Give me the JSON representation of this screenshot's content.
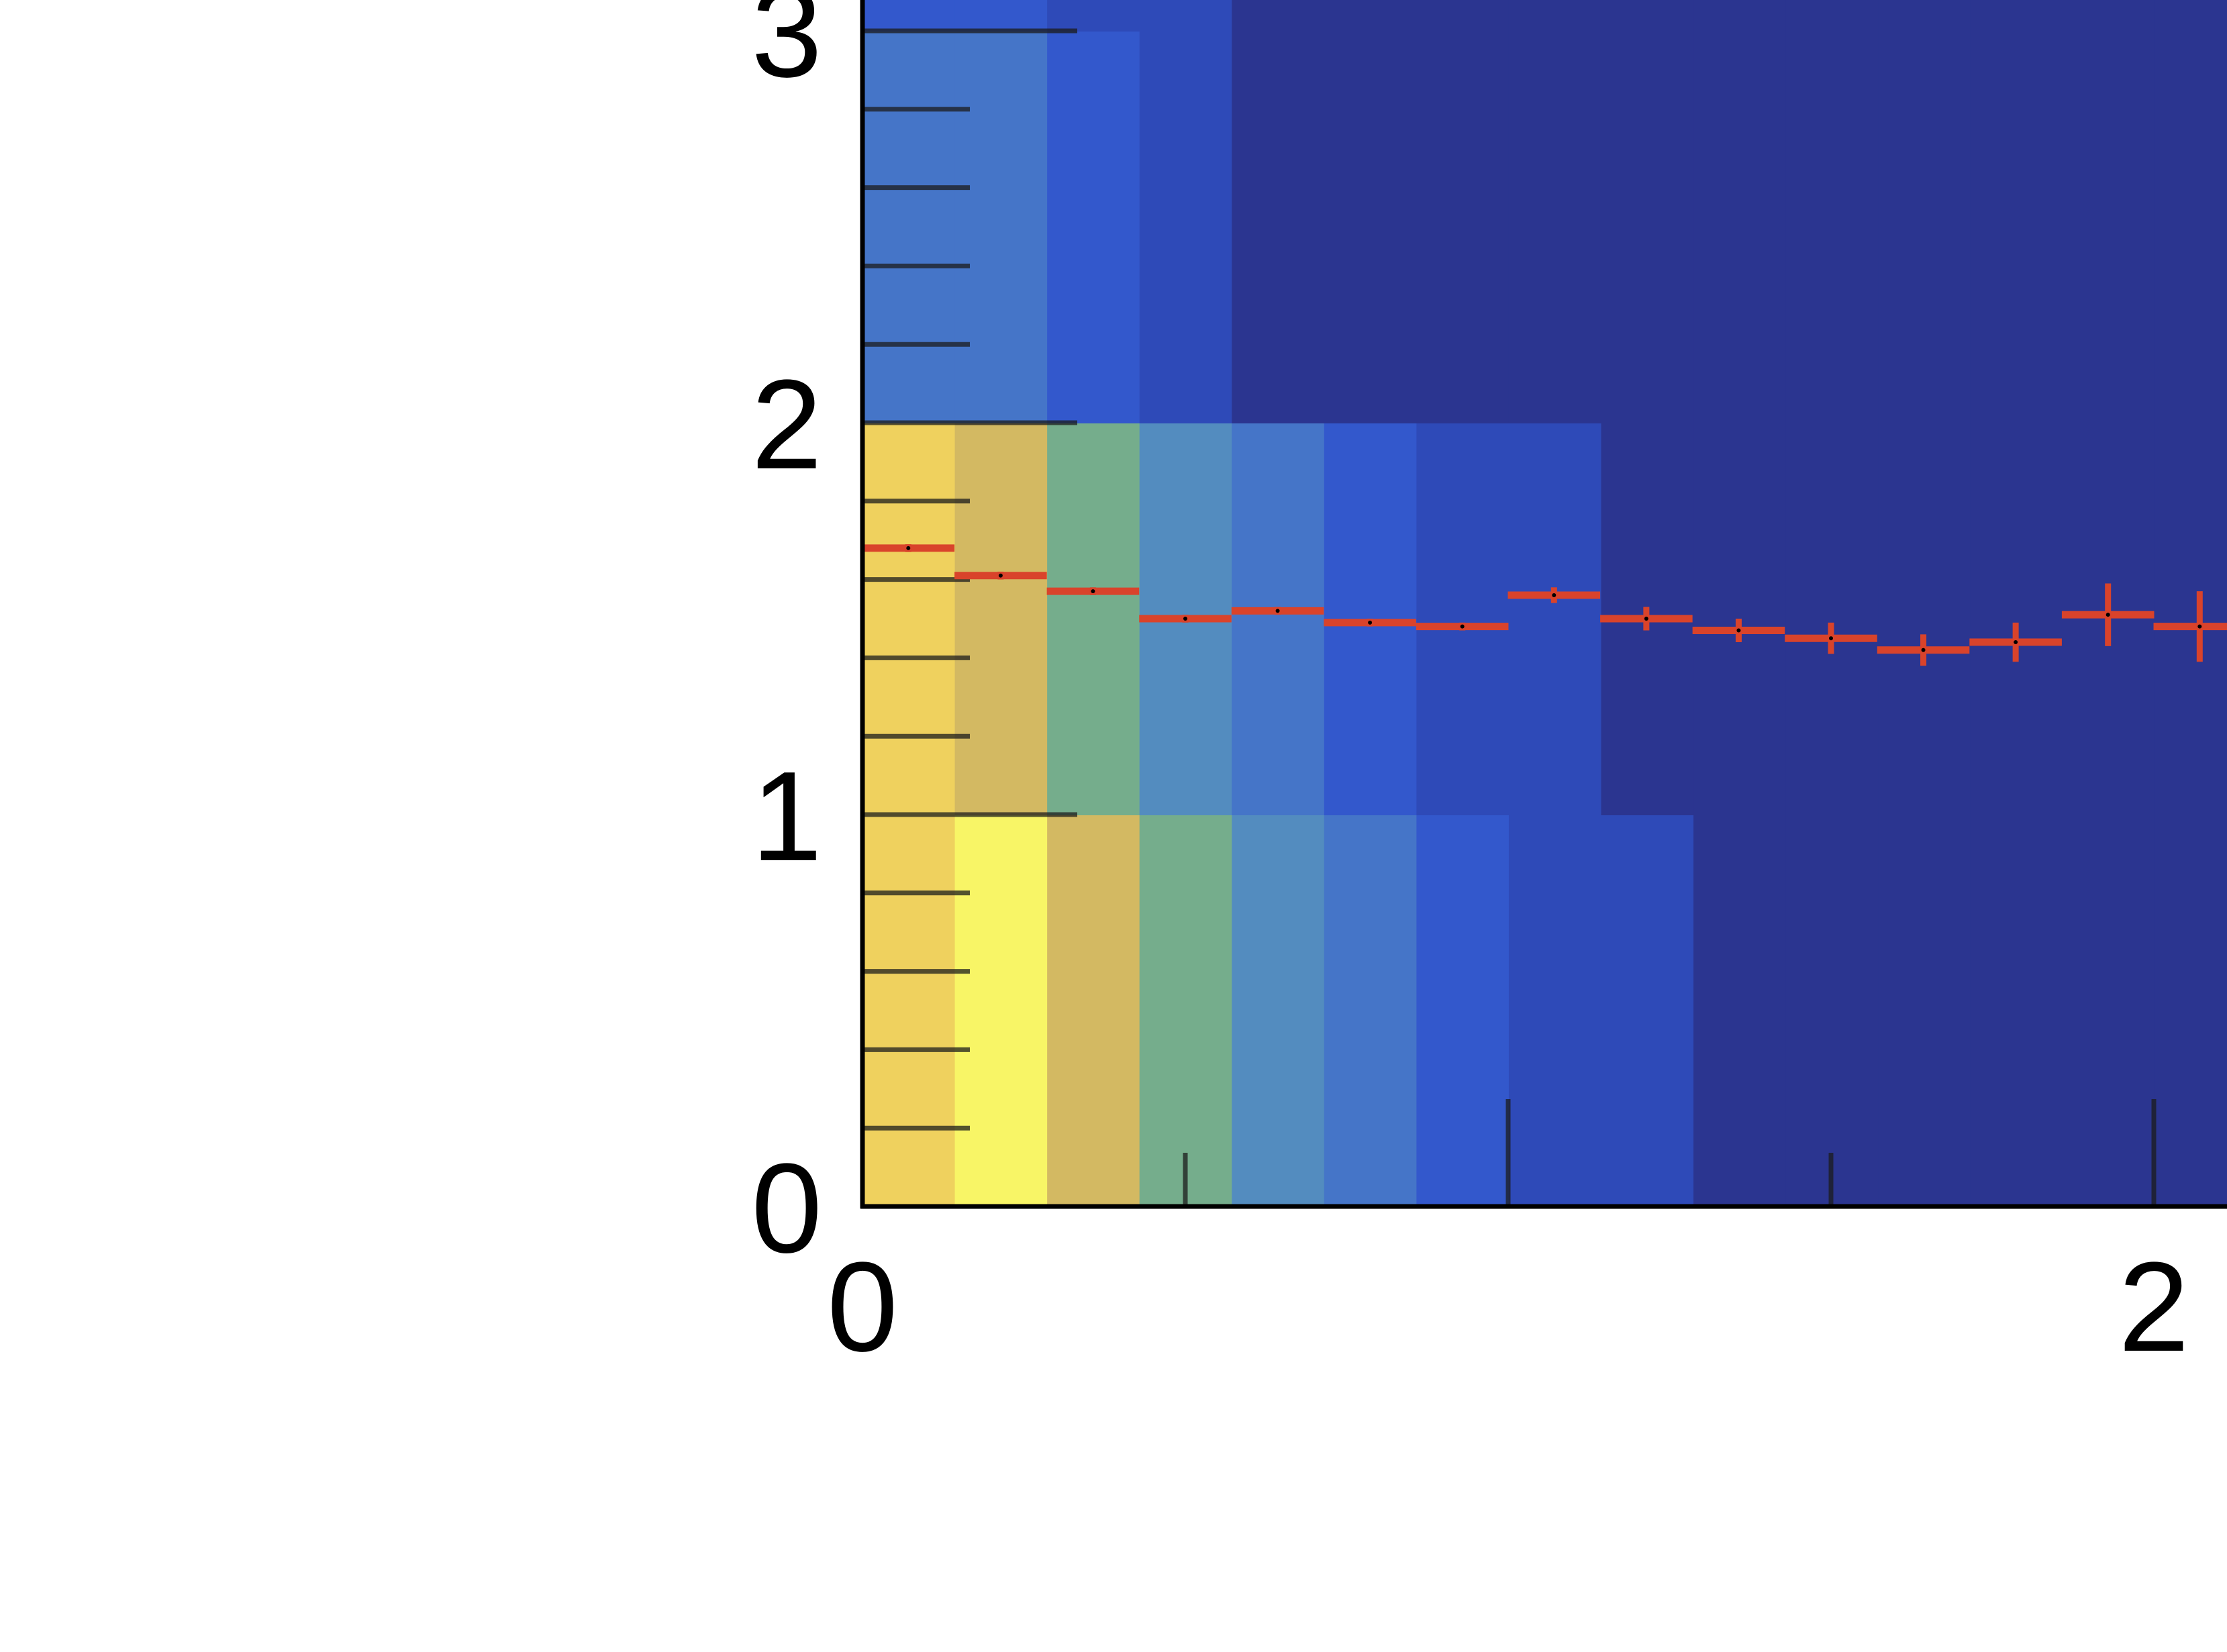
{
  "chart_data": {
    "type": "heatmap",
    "title": "",
    "xlabel": "",
    "ylabel": "",
    "xlim": [
      0,
      2.22
    ],
    "ylim": [
      0,
      3.08
    ],
    "x_ticks": [
      0,
      2
    ],
    "y_ticks": [
      0,
      1,
      2,
      3
    ],
    "x_tick_labels": [
      "0",
      "2"
    ],
    "y_tick_labels": [
      "0",
      "1",
      "2",
      "3"
    ],
    "x_bin_width": 0.143,
    "y_bin_width": 1,
    "colors": {
      "c0": "#2b3590",
      "c1": "#2e4ab8",
      "c2": "#3358cc",
      "c3": "#4575c8",
      "c4": "#538cbf",
      "c5": "#75ad8c",
      "c6": "#d3b962",
      "c7": "#efd15e",
      "c8": "#f8f566",
      "profile": "#d9432b",
      "axis": "#000000"
    },
    "heatmap_rows": [
      {
        "y_range": [
          0,
          1
        ],
        "cells": [
          "c7",
          "c8",
          "c6",
          "c5",
          "c4",
          "c3",
          "c2",
          "c1",
          "c1",
          "c0",
          "c0",
          "c0",
          "c0",
          "c0",
          "c0",
          "c0"
        ]
      },
      {
        "y_range": [
          1,
          2
        ],
        "cells": [
          "c7",
          "c6",
          "c5",
          "c4",
          "c3",
          "c2",
          "c1",
          "c1",
          "c0",
          "c0",
          "c0",
          "c0",
          "c0",
          "c0",
          "c0",
          "c0"
        ]
      },
      {
        "y_range": [
          2,
          3
        ],
        "cells": [
          "c3",
          "c3",
          "c2",
          "c1",
          "c0",
          "c0",
          "c0",
          "c0",
          "c0",
          "c0",
          "c0",
          "c0",
          "c0",
          "c0",
          "c0",
          "c0"
        ]
      },
      {
        "y_range": [
          3,
          4
        ],
        "cells": [
          "c2",
          "c2",
          "c1",
          "c1",
          "c0",
          "c0",
          "c0",
          "c0",
          "c0",
          "c0",
          "c0",
          "c0",
          "c0",
          "c0",
          "c0",
          "c0"
        ]
      }
    ],
    "profile_points": [
      {
        "x": 0.071,
        "y": 1.68,
        "yerr": 0.01
      },
      {
        "x": 0.214,
        "y": 1.61,
        "yerr": 0.01
      },
      {
        "x": 0.357,
        "y": 1.57,
        "yerr": 0.01
      },
      {
        "x": 0.5,
        "y": 1.5,
        "yerr": 0.01
      },
      {
        "x": 0.643,
        "y": 1.52,
        "yerr": 0.01
      },
      {
        "x": 0.786,
        "y": 1.49,
        "yerr": 0.01
      },
      {
        "x": 0.929,
        "y": 1.48,
        "yerr": 0.01
      },
      {
        "x": 1.071,
        "y": 1.56,
        "yerr": 0.02
      },
      {
        "x": 1.214,
        "y": 1.5,
        "yerr": 0.03
      },
      {
        "x": 1.357,
        "y": 1.47,
        "yerr": 0.03
      },
      {
        "x": 1.5,
        "y": 1.45,
        "yerr": 0.04
      },
      {
        "x": 1.643,
        "y": 1.42,
        "yerr": 0.04
      },
      {
        "x": 1.786,
        "y": 1.44,
        "yerr": 0.05
      },
      {
        "x": 1.929,
        "y": 1.51,
        "yerr": 0.08
      },
      {
        "x": 2.071,
        "y": 1.48,
        "yerr": 0.09
      }
    ]
  }
}
